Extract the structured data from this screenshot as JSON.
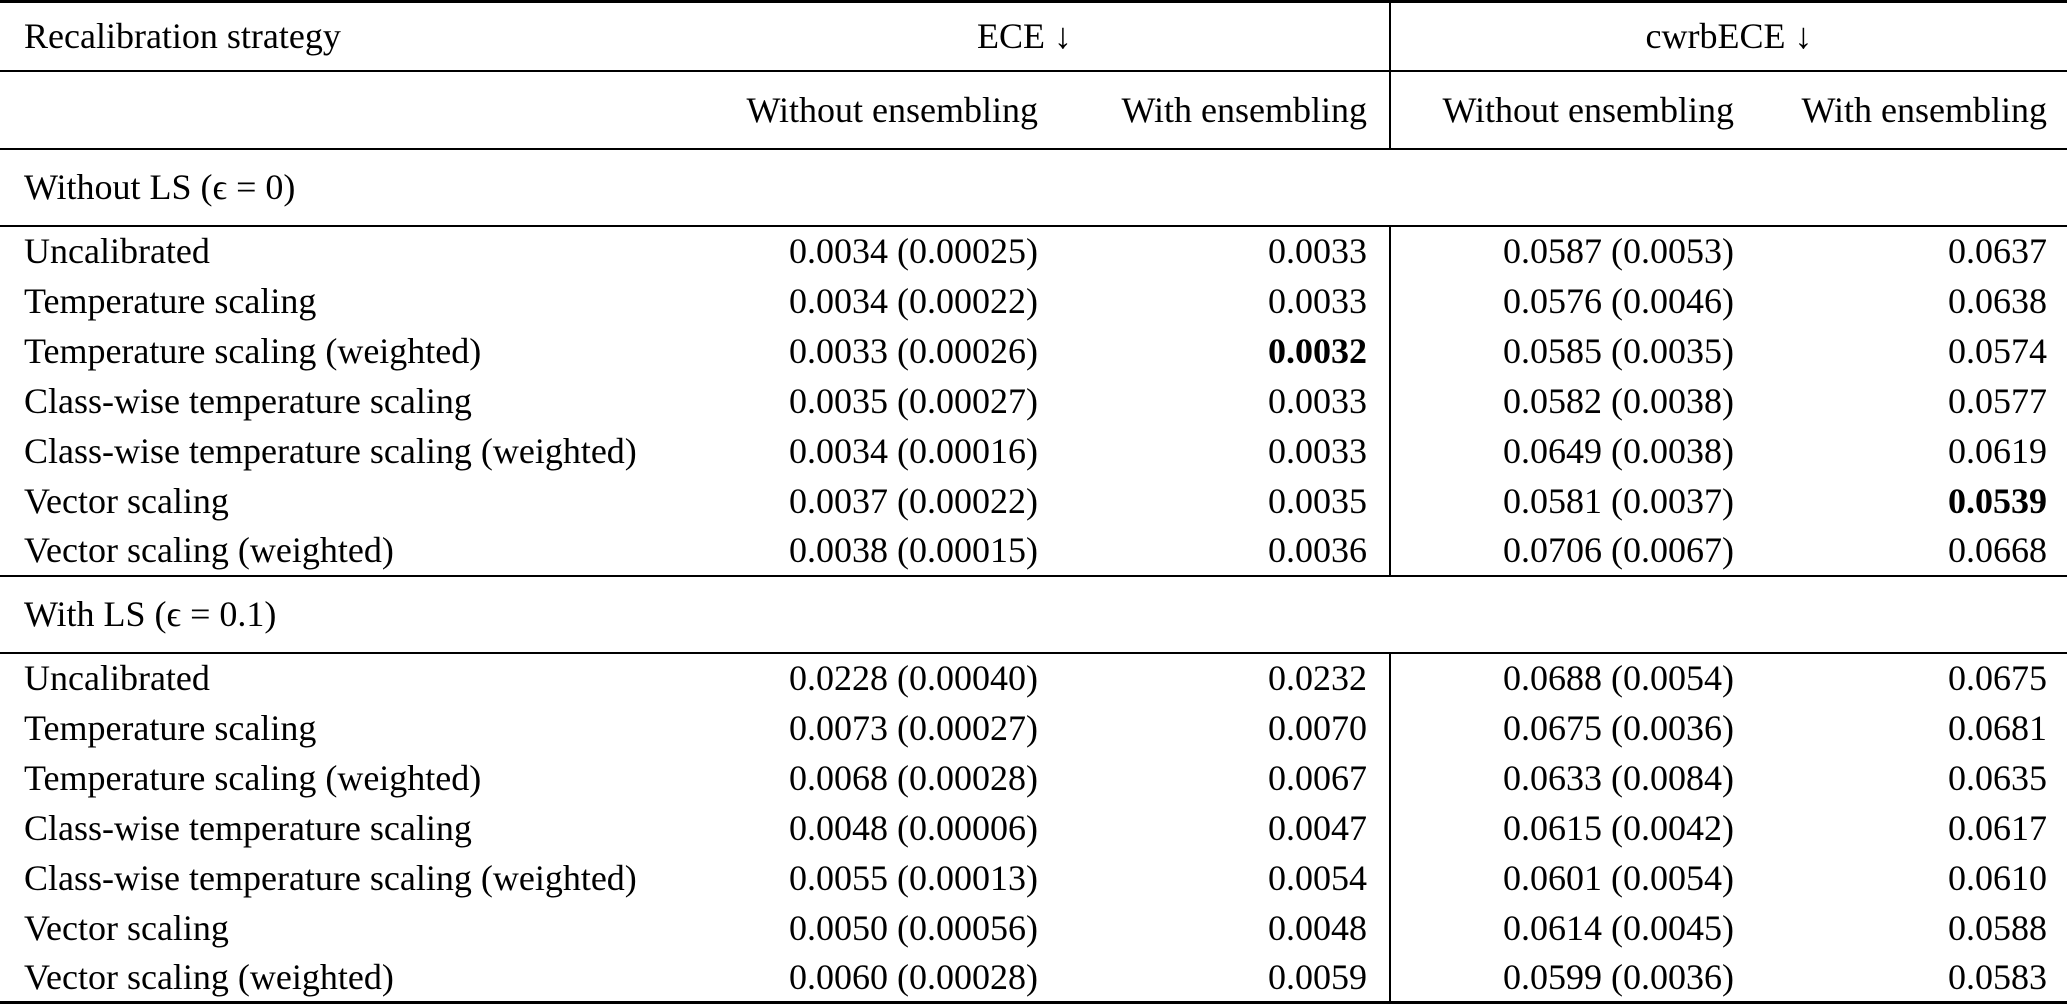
{
  "table": {
    "headers": {
      "strategy": "Recalibration strategy",
      "group_ece": "ECE ↓",
      "group_cwrbece": "cwrbECE ↓",
      "sub_without": "Without ensembling",
      "sub_with": "With ensembling"
    },
    "sections": [
      {
        "title": "Without LS (ϵ = 0)",
        "rows": [
          {
            "label": "Uncalibrated",
            "ece_wo": "0.0034 (0.00025)",
            "ece_w": "0.0033",
            "cwrb_wo": "0.0587 (0.0053)",
            "cwrb_w": "0.0637"
          },
          {
            "label": "Temperature scaling",
            "ece_wo": "0.0034 (0.00022)",
            "ece_w": "0.0033",
            "cwrb_wo": "0.0576 (0.0046)",
            "cwrb_w": "0.0638"
          },
          {
            "label": "Temperature scaling (weighted)",
            "ece_wo": "0.0033 (0.00026)",
            "ece_w": "0.0032",
            "cwrb_wo": "0.0585 (0.0035)",
            "cwrb_w": "0.0574"
          },
          {
            "label": "Class-wise temperature scaling",
            "ece_wo": "0.0035 (0.00027)",
            "ece_w": "0.0033",
            "cwrb_wo": "0.0582 (0.0038)",
            "cwrb_w": "0.0577"
          },
          {
            "label": "Class-wise temperature scaling (weighted)",
            "ece_wo": "0.0034 (0.00016)",
            "ece_w": "0.0033",
            "cwrb_wo": "0.0649 (0.0038)",
            "cwrb_w": "0.0619"
          },
          {
            "label": "Vector scaling",
            "ece_wo": "0.0037 (0.00022)",
            "ece_w": "0.0035",
            "cwrb_wo": "0.0581 (0.0037)",
            "cwrb_w": "0.0539"
          },
          {
            "label": "Vector scaling (weighted)",
            "ece_wo": "0.0038 (0.00015)",
            "ece_w": "0.0036",
            "cwrb_wo": "0.0706 (0.0067)",
            "cwrb_w": "0.0668"
          }
        ]
      },
      {
        "title": "With LS (ϵ = 0.1)",
        "rows": [
          {
            "label": "Uncalibrated",
            "ece_wo": "0.0228 (0.00040)",
            "ece_w": "0.0232",
            "cwrb_wo": "0.0688 (0.0054)",
            "cwrb_w": "0.0675"
          },
          {
            "label": "Temperature scaling",
            "ece_wo": "0.0073 (0.00027)",
            "ece_w": "0.0070",
            "cwrb_wo": "0.0675 (0.0036)",
            "cwrb_w": "0.0681"
          },
          {
            "label": "Temperature scaling (weighted)",
            "ece_wo": "0.0068 (0.00028)",
            "ece_w": "0.0067",
            "cwrb_wo": "0.0633 (0.0084)",
            "cwrb_w": "0.0635"
          },
          {
            "label": "Class-wise temperature scaling",
            "ece_wo": "0.0048 (0.00006)",
            "ece_w": "0.0047",
            "cwrb_wo": "0.0615 (0.0042)",
            "cwrb_w": "0.0617"
          },
          {
            "label": "Class-wise temperature scaling (weighted)",
            "ece_wo": "0.0055 (0.00013)",
            "ece_w": "0.0054",
            "cwrb_wo": "0.0601 (0.0054)",
            "cwrb_w": "0.0610"
          },
          {
            "label": "Vector scaling",
            "ece_wo": "0.0050 (0.00056)",
            "ece_w": "0.0048",
            "cwrb_wo": "0.0614 (0.0045)",
            "cwrb_w": "0.0588"
          },
          {
            "label": "Vector scaling (weighted)",
            "ece_wo": "0.0060 (0.00028)",
            "ece_w": "0.0059",
            "cwrb_wo": "0.0599 (0.0036)",
            "cwrb_w": "0.0583"
          }
        ]
      }
    ],
    "bold_cells": [
      "table.sections.0.rows.2.ece_w",
      "table.sections.0.rows.5.cwrb_w"
    ]
  }
}
